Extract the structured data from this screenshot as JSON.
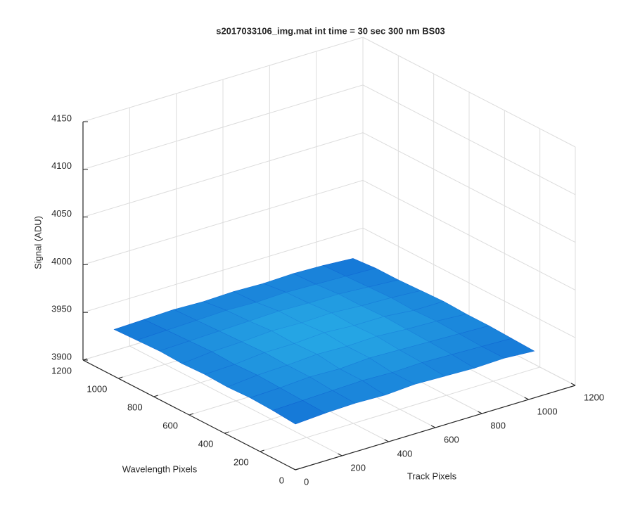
{
  "chart_data": {
    "type": "surface3d",
    "title": "s2017033106_img.mat int time = 30 sec  300 nm BS03",
    "xlabel": "Track Pixels",
    "ylabel": "Wavelength Pixels",
    "zlabel": "Signal (ADU)",
    "xlim": [
      0,
      1200
    ],
    "ylim": [
      0,
      1200
    ],
    "zlim": [
      3900,
      4150
    ],
    "xticks": [
      0,
      200,
      400,
      600,
      800,
      1000,
      1200
    ],
    "yticks": [
      0,
      200,
      400,
      600,
      800,
      1000,
      1200
    ],
    "zticks": [
      3900,
      3950,
      4000,
      4050,
      4100,
      4150
    ],
    "grid": true,
    "x": [
      0,
      128,
      256,
      384,
      512,
      640,
      768,
      896,
      1024
    ],
    "y": [
      0,
      128,
      256,
      384,
      512,
      640,
      768,
      896,
      1024
    ],
    "z": [
      [
        3948,
        3950,
        3951,
        3950,
        3952,
        3951,
        3950,
        3951,
        3949
      ],
      [
        3950,
        3951,
        3952,
        3953,
        3952,
        3953,
        3952,
        3951,
        3950
      ],
      [
        3951,
        3952,
        3954,
        3953,
        3955,
        3954,
        3953,
        3952,
        3951
      ],
      [
        3950,
        3953,
        3954,
        3956,
        3955,
        3956,
        3954,
        3953,
        3951
      ],
      [
        3951,
        3952,
        3955,
        3955,
        3957,
        3955,
        3955,
        3952,
        3952
      ],
      [
        3950,
        3953,
        3954,
        3956,
        3955,
        3956,
        3954,
        3953,
        3951
      ],
      [
        3951,
        3952,
        3953,
        3954,
        3955,
        3954,
        3954,
        3952,
        3950
      ],
      [
        3950,
        3951,
        3952,
        3953,
        3952,
        3953,
        3952,
        3951,
        3950
      ],
      [
        3949,
        3950,
        3951,
        3950,
        3951,
        3950,
        3951,
        3950,
        3948
      ]
    ]
  }
}
